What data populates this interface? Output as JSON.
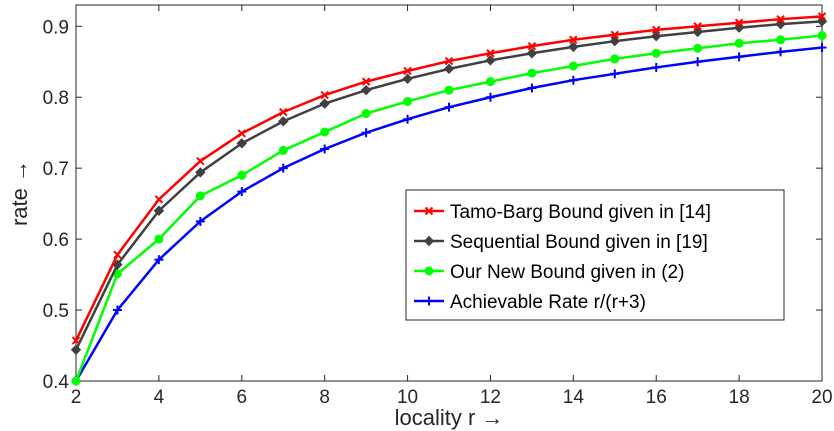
{
  "chart_data": {
    "type": "line",
    "xlabel": "locality r →",
    "ylabel": "rate →",
    "xlim": [
      2,
      20
    ],
    "ylim": [
      0.4,
      0.93
    ],
    "x_ticks": [
      2,
      4,
      6,
      8,
      10,
      12,
      14,
      16,
      18,
      20
    ],
    "y_ticks": [
      0.4,
      0.5,
      0.6,
      0.7,
      0.8,
      0.9
    ],
    "y_tick_labels": [
      "0.4",
      "0.5",
      "0.6",
      "0.7",
      "0.8",
      "0.9"
    ],
    "grid": false,
    "legend_position": "lower-right",
    "x": [
      2,
      3,
      4,
      5,
      6,
      7,
      8,
      9,
      10,
      11,
      12,
      13,
      14,
      15,
      16,
      17,
      18,
      19,
      20
    ],
    "series": [
      {
        "name": "Tamo-Barg Bound given in [14]",
        "color": "#ff0000",
        "marker": "x",
        "values": [
          0.457,
          0.578,
          0.656,
          0.71,
          0.749,
          0.779,
          0.803,
          0.822,
          0.837,
          0.851,
          0.862,
          0.872,
          0.881,
          0.888,
          0.895,
          0.9,
          0.905,
          0.91,
          0.914
        ]
      },
      {
        "name": "Sequential Bound given in [19]",
        "color": "#404040",
        "marker": "diamond",
        "values": [
          0.444,
          0.564,
          0.64,
          0.694,
          0.735,
          0.766,
          0.791,
          0.81,
          0.826,
          0.84,
          0.852,
          0.862,
          0.871,
          0.879,
          0.886,
          0.892,
          0.898,
          0.903,
          0.907
        ]
      },
      {
        "name": "Our New Bound given in (2)",
        "color": "#00ff00",
        "marker": "circle",
        "values": [
          0.4,
          0.551,
          0.6,
          0.661,
          0.69,
          0.725,
          0.751,
          0.777,
          0.794,
          0.81,
          0.822,
          0.834,
          0.844,
          0.854,
          0.862,
          0.869,
          0.876,
          0.881,
          0.887
        ]
      },
      {
        "name": "Achievable Rate r/(r+3)",
        "color": "#0000ff",
        "marker": "plus",
        "values": [
          0.4,
          0.5,
          0.571,
          0.625,
          0.667,
          0.7,
          0.727,
          0.75,
          0.769,
          0.786,
          0.8,
          0.813,
          0.824,
          0.833,
          0.842,
          0.85,
          0.857,
          0.864,
          0.87
        ]
      }
    ]
  }
}
